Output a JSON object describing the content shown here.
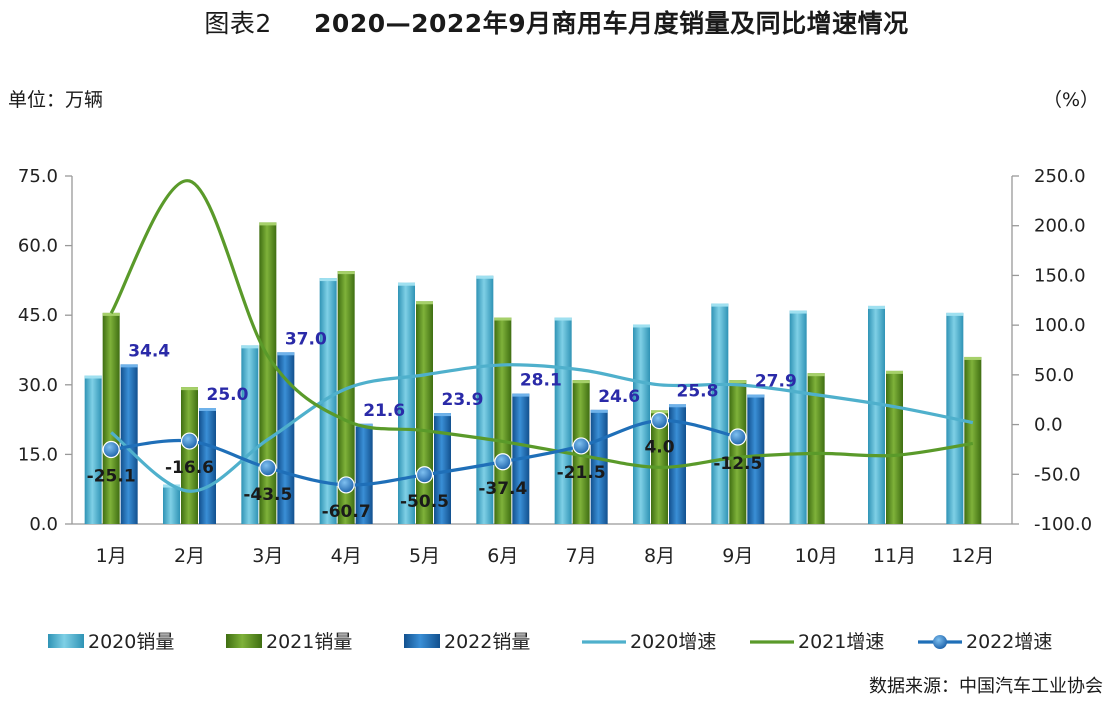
{
  "header": {
    "prefix": "图表2",
    "title": "2020—2022年9月商用车月度销量及同比增速情况",
    "unit_left": "单位：万辆",
    "unit_right": "（%）",
    "source": "数据来源：中国汽车工业协会"
  },
  "chart_data": {
    "type": "bar",
    "title": "2020—2022年9月商用车月度销量及同比增速情况",
    "categories": [
      "1月",
      "2月",
      "3月",
      "4月",
      "5月",
      "6月",
      "7月",
      "8月",
      "9月",
      "10月",
      "11月",
      "12月"
    ],
    "bar_series": [
      {
        "name": "2020销量",
        "color": "#4bb3cf",
        "values": [
          32.0,
          8.5,
          38.5,
          53.0,
          52.0,
          53.5,
          44.5,
          43.0,
          47.5,
          46.0,
          47.0,
          45.5
        ]
      },
      {
        "name": "2021销量",
        "color": "#5a8e22",
        "values": [
          45.5,
          29.5,
          65.0,
          54.5,
          48.0,
          44.5,
          31.0,
          24.5,
          31.0,
          32.5,
          33.0,
          36.0
        ]
      },
      {
        "name": "2022销量",
        "color": "#1f6fb8",
        "values": [
          34.4,
          25.0,
          37.0,
          21.6,
          23.9,
          28.1,
          24.6,
          25.8,
          27.9
        ]
      }
    ],
    "line_series": [
      {
        "name": "2020增速",
        "color": "#4fb0cc",
        "values": [
          -8,
          -67,
          -15,
          36,
          50,
          60,
          55,
          40,
          40,
          30,
          18,
          2
        ]
      },
      {
        "name": "2021增速",
        "color": "#5a9a2a",
        "values": [
          112,
          245,
          69,
          4,
          -6,
          -17,
          -31,
          -43,
          -33,
          -29,
          -31,
          -19
        ]
      },
      {
        "name": "2022增速",
        "color": "#1f6fb8",
        "values": [
          -25.1,
          -16.6,
          -43.5,
          -60.7,
          -50.5,
          -37.4,
          -21.5,
          4.0,
          -12.5
        ]
      }
    ],
    "bar_labels": [
      "34.4",
      "25.0",
      "37.0",
      "21.6",
      "23.9",
      "28.1",
      "24.6",
      "25.8",
      "27.9"
    ],
    "line_labels": [
      "-25.1",
      "-16.6",
      "-43.5",
      "-60.7",
      "-50.5",
      "-37.4",
      "-21.5",
      "4.0",
      "-12.5"
    ],
    "y_left": {
      "min": 0,
      "max": 75,
      "ticks": [
        "0.0",
        "15.0",
        "30.0",
        "45.0",
        "60.0",
        "75.0"
      ]
    },
    "y_right": {
      "min": -100,
      "max": 250,
      "ticks": [
        "-100.0",
        "-50.0",
        "0.0",
        "50.0",
        "100.0",
        "150.0",
        "200.0",
        "250.0"
      ]
    },
    "legend_position": "bottom",
    "grid": false
  }
}
